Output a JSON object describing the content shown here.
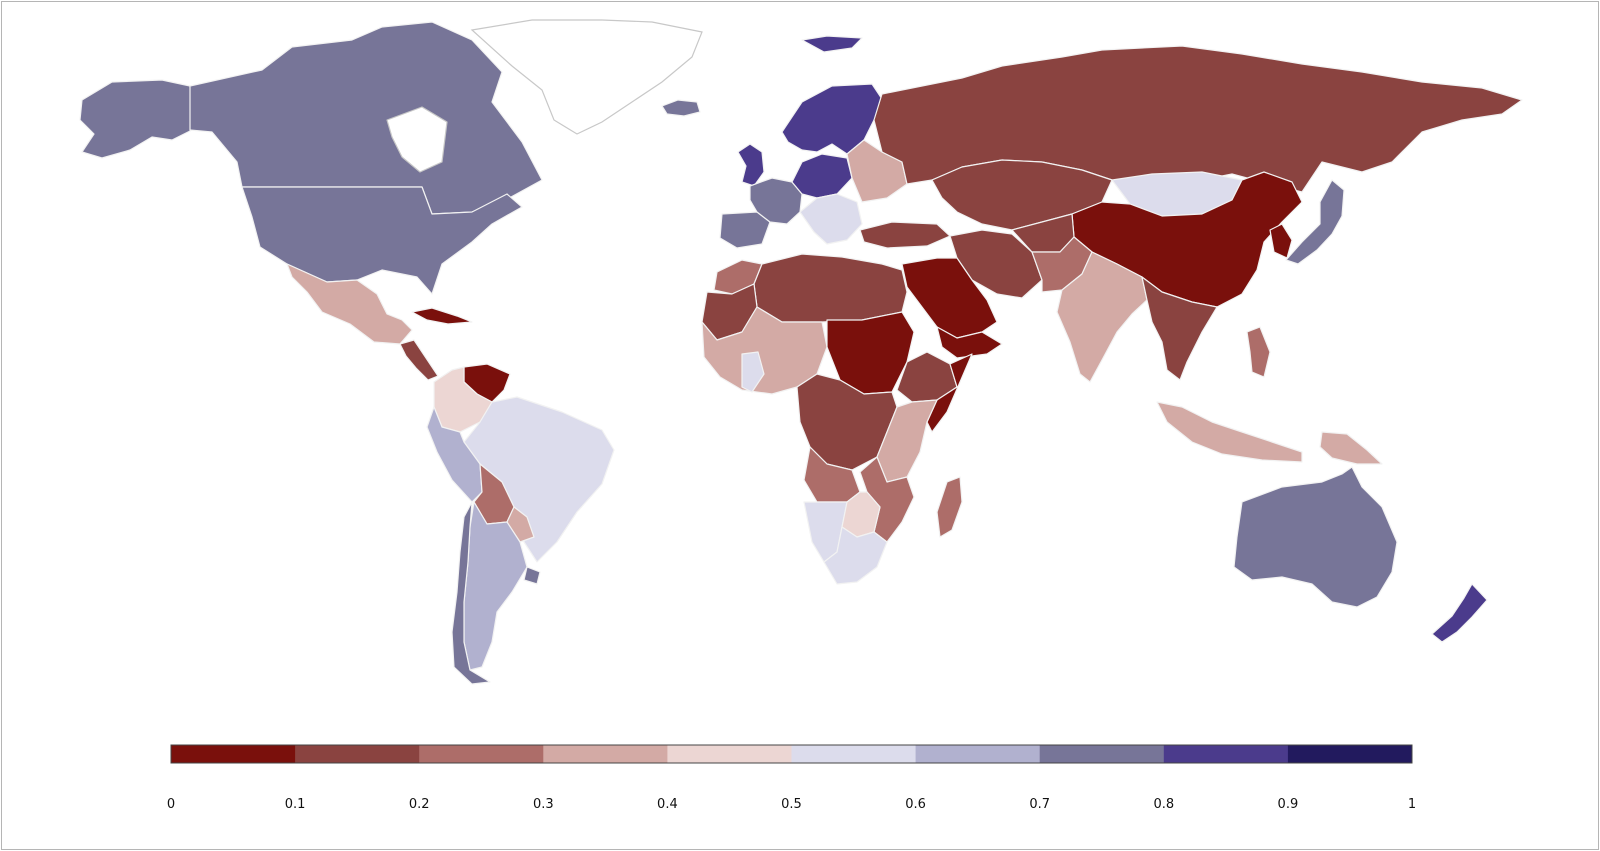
{
  "colorbar": {
    "ticks": [
      "0",
      "0.1",
      "0.2",
      "0.3",
      "0.4",
      "0.5",
      "0.6",
      "0.7",
      "0.8",
      "0.9",
      "1"
    ],
    "colors": [
      "#7a100c",
      "#8a4340",
      "#ad6d69",
      "#d3aaa5",
      "#ecd6d3",
      "#dcdcec",
      "#b1b1cf",
      "#777598",
      "#4b3b8c",
      "#221a5e"
    ]
  },
  "regions": [
    {
      "name": "Canada",
      "value": 0.75
    },
    {
      "name": "United States",
      "value": 0.75
    },
    {
      "name": "Alaska",
      "value": 0.75
    },
    {
      "name": "Greenland",
      "value": null
    },
    {
      "name": "Mexico",
      "value": 0.35
    },
    {
      "name": "Central America",
      "value": 0.15
    },
    {
      "name": "Cuba",
      "value": 0.05
    },
    {
      "name": "Venezuela",
      "value": 0.05
    },
    {
      "name": "Colombia",
      "value": 0.45
    },
    {
      "name": "Peru",
      "value": 0.65
    },
    {
      "name": "Brazil",
      "value": 0.55
    },
    {
      "name": "Bolivia",
      "value": 0.25
    },
    {
      "name": "Paraguay",
      "value": 0.35
    },
    {
      "name": "Chile",
      "value": 0.75
    },
    {
      "name": "Argentina",
      "value": 0.65
    },
    {
      "name": "Uruguay",
      "value": 0.75
    },
    {
      "name": "Iceland",
      "value": 0.75
    },
    {
      "name": "United Kingdom",
      "value": 0.85
    },
    {
      "name": "Scandinavia",
      "value": 0.85
    },
    {
      "name": "Svalbard",
      "value": 0.85
    },
    {
      "name": "Western Europe",
      "value": 0.75
    },
    {
      "name": "Central Europe",
      "value": 0.85
    },
    {
      "name": "Iberia",
      "value": 0.75
    },
    {
      "name": "Eastern Europe",
      "value": 0.35
    },
    {
      "name": "Balkans",
      "value": 0.55
    },
    {
      "name": "Turkey",
      "value": 0.15
    },
    {
      "name": "Russia",
      "value": 0.15
    },
    {
      "name": "Central Asia",
      "value": 0.15
    },
    {
      "name": "Mongolia",
      "value": 0.55
    },
    {
      "name": "China",
      "value": 0.05
    },
    {
      "name": "Japan",
      "value": 0.75
    },
    {
      "name": "Korea",
      "value": 0.05
    },
    {
      "name": "Iran",
      "value": 0.15
    },
    {
      "name": "Afghanistan",
      "value": 0.15
    },
    {
      "name": "Pakistan",
      "value": 0.25
    },
    {
      "name": "India",
      "value": 0.35
    },
    {
      "name": "Saudi Arabia",
      "value": 0.05
    },
    {
      "name": "Yemen",
      "value": 0.05
    },
    {
      "name": "Southeast Asia",
      "value": 0.15
    },
    {
      "name": "Philippines",
      "value": 0.25
    },
    {
      "name": "Indonesia",
      "value": 0.35
    },
    {
      "name": "Papua New Guinea",
      "value": 0.35
    },
    {
      "name": "Australia",
      "value": 0.75
    },
    {
      "name": "New Zealand",
      "value": 0.85
    },
    {
      "name": "North Africa",
      "value": 0.15
    },
    {
      "name": "Morocco",
      "value": 0.25
    },
    {
      "name": "Mauritania",
      "value": 0.15
    },
    {
      "name": "West Africa",
      "value": 0.35
    },
    {
      "name": "Ghana",
      "value": 0.55
    },
    {
      "name": "Sudan",
      "value": 0.05
    },
    {
      "name": "Ethiopia",
      "value": 0.15
    },
    {
      "name": "Somalia",
      "value": 0.05
    },
    {
      "name": "Central Africa",
      "value": 0.15
    },
    {
      "name": "East Africa",
      "value": 0.35
    },
    {
      "name": "Angola",
      "value": 0.25
    },
    {
      "name": "Mozambique",
      "value": 0.25
    },
    {
      "name": "Namibia",
      "value": 0.55
    },
    {
      "name": "Botswana",
      "value": 0.45
    },
    {
      "name": "South Africa",
      "value": 0.55
    },
    {
      "name": "Madagascar",
      "value": 0.25
    }
  ]
}
